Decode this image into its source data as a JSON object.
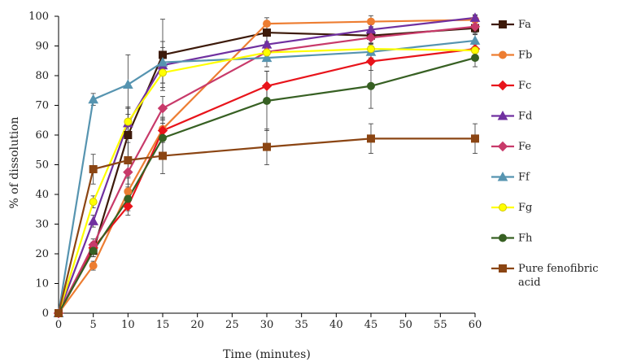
{
  "chart_data": {
    "type": "line",
    "title": "",
    "xlabel": "Time (minutes)",
    "ylabel": "% of dissolution",
    "x": [
      0,
      5,
      10,
      15,
      30,
      45,
      60
    ],
    "xlim": [
      0,
      60
    ],
    "ylim": [
      0,
      100
    ],
    "xticks": [
      0,
      5,
      10,
      15,
      20,
      25,
      30,
      35,
      40,
      45,
      50,
      55,
      60
    ],
    "yticks": [
      0,
      10,
      20,
      30,
      40,
      50,
      60,
      70,
      80,
      90,
      100
    ],
    "grid": false,
    "legend_position": "right",
    "series": [
      {
        "name": "Fa",
        "color": "#3d1a0a",
        "marker": "square",
        "values": [
          0,
          21,
          60,
          87,
          94.5,
          93.5,
          96
        ],
        "errors": [
          0,
          2,
          9,
          12,
          3,
          3,
          2
        ]
      },
      {
        "name": "Fb",
        "color": "#ed7d31",
        "marker": "circle",
        "values": [
          0,
          16,
          41,
          62,
          97.5,
          98.2,
          98.8
        ],
        "errors": [
          0,
          1.5,
          5,
          4,
          2,
          2,
          1.5
        ]
      },
      {
        "name": "Fc",
        "color": "#e8141b",
        "marker": "diamond",
        "values": [
          0,
          22,
          36,
          61.5,
          76.5,
          84.8,
          89
        ],
        "errors": [
          0,
          2,
          3,
          4,
          5,
          3,
          3
        ]
      },
      {
        "name": "Fd",
        "color": "#7030a0",
        "marker": "triangle",
        "values": [
          0,
          31,
          64,
          83.5,
          90.5,
          95.5,
          99.5
        ],
        "errors": [
          0,
          2,
          5,
          6,
          3,
          2,
          1
        ]
      },
      {
        "name": "Fe",
        "color": "#c83a6a",
        "marker": "diamond",
        "values": [
          0,
          23,
          47.5,
          69,
          88,
          92.8,
          96.5
        ],
        "errors": [
          0,
          2,
          4,
          4,
          3,
          2,
          2
        ]
      },
      {
        "name": "Ff",
        "color": "#5694b0",
        "marker": "triangle",
        "values": [
          0,
          72,
          77,
          84.5,
          86,
          88,
          91.8
        ],
        "errors": [
          0,
          2,
          10,
          7,
          3,
          2,
          2
        ]
      },
      {
        "name": "Fg",
        "color": "#ffff00",
        "marker": "circle",
        "values": [
          0,
          37.5,
          64.5,
          81,
          87.8,
          89,
          88.5
        ],
        "errors": [
          0,
          2,
          5,
          5,
          3,
          2,
          2
        ]
      },
      {
        "name": "Fh",
        "color": "#376023",
        "marker": "circle",
        "values": [
          0,
          21,
          38.5,
          59,
          71.5,
          76.5,
          86
        ],
        "errors": [
          0,
          2,
          4,
          5,
          10,
          7.5,
          3
        ]
      },
      {
        "name": "Pure fenofibric acid",
        "color": "#8b4513",
        "marker": "square",
        "values": [
          0,
          48.5,
          51.5,
          53,
          56,
          58.8,
          58.8
        ],
        "errors": [
          0,
          5,
          6,
          6,
          6,
          5,
          5
        ]
      }
    ]
  }
}
